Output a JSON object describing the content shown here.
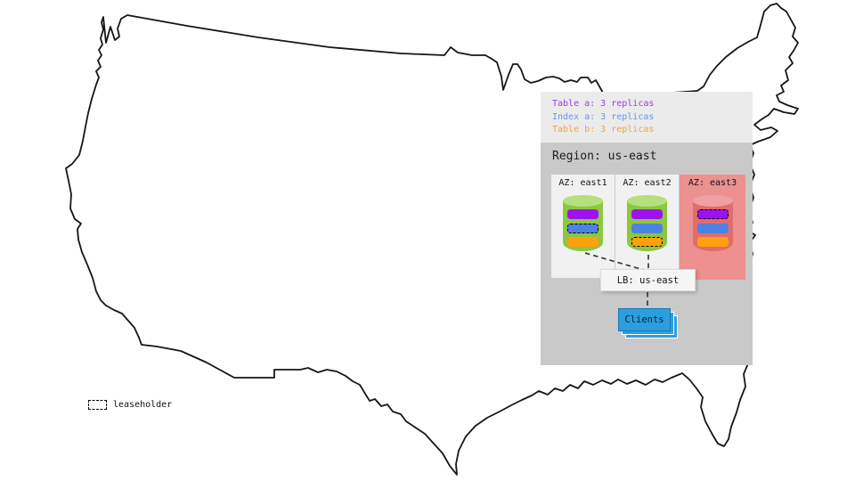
{
  "colors": {
    "panel_bg": "#ebebeb",
    "region_bg": "#c9c9c9",
    "lb_bg": "#f5f5f5",
    "clients_bg": "#2b9fdd",
    "connector": "#3a3a3a"
  },
  "replica_legend": {
    "items": [
      {
        "label": "Table a: 3 replicas",
        "color": "#a137e3"
      },
      {
        "label": "Index a: 3 replicas",
        "color": "#6495ed"
      },
      {
        "label": "Table b: 3 replicas",
        "color": "#f0a43c"
      }
    ]
  },
  "region": {
    "title": "Region: us-east",
    "azs": [
      {
        "label": "AZ: east1",
        "bg": "#f1f1f1",
        "cylinder": {
          "body": "#8dc63f",
          "top": "#b6df7d"
        },
        "bars": [
          {
            "name": "table-a",
            "color": "#9d13ef",
            "leaseholder": false
          },
          {
            "name": "index-a",
            "color": "#4d82e2",
            "leaseholder": true
          },
          {
            "name": "table-b",
            "color": "#ffa00d",
            "leaseholder": false
          }
        ]
      },
      {
        "label": "AZ: east2",
        "bg": "#f1f1f1",
        "cylinder": {
          "body": "#8dc63f",
          "top": "#b6df7d"
        },
        "bars": [
          {
            "name": "table-a",
            "color": "#9d13ef",
            "leaseholder": false
          },
          {
            "name": "index-a",
            "color": "#4d82e2",
            "leaseholder": false
          },
          {
            "name": "table-b",
            "color": "#ffa00d",
            "leaseholder": true
          }
        ]
      },
      {
        "label": "AZ: east3",
        "bg": "#ec9090",
        "cylinder": {
          "body": "#e16c6c",
          "top": "#efa0a0"
        },
        "bars": [
          {
            "name": "table-a",
            "color": "#9d13ef",
            "leaseholder": true
          },
          {
            "name": "index-a",
            "color": "#4d82e2",
            "leaseholder": false
          },
          {
            "name": "table-b",
            "color": "#ffa00d",
            "leaseholder": false
          }
        ]
      }
    ]
  },
  "load_balancer": {
    "label": "LB: us-east"
  },
  "clients": {
    "label": "Clients"
  },
  "map_legend": {
    "leaseholder_label": "leaseholder"
  }
}
